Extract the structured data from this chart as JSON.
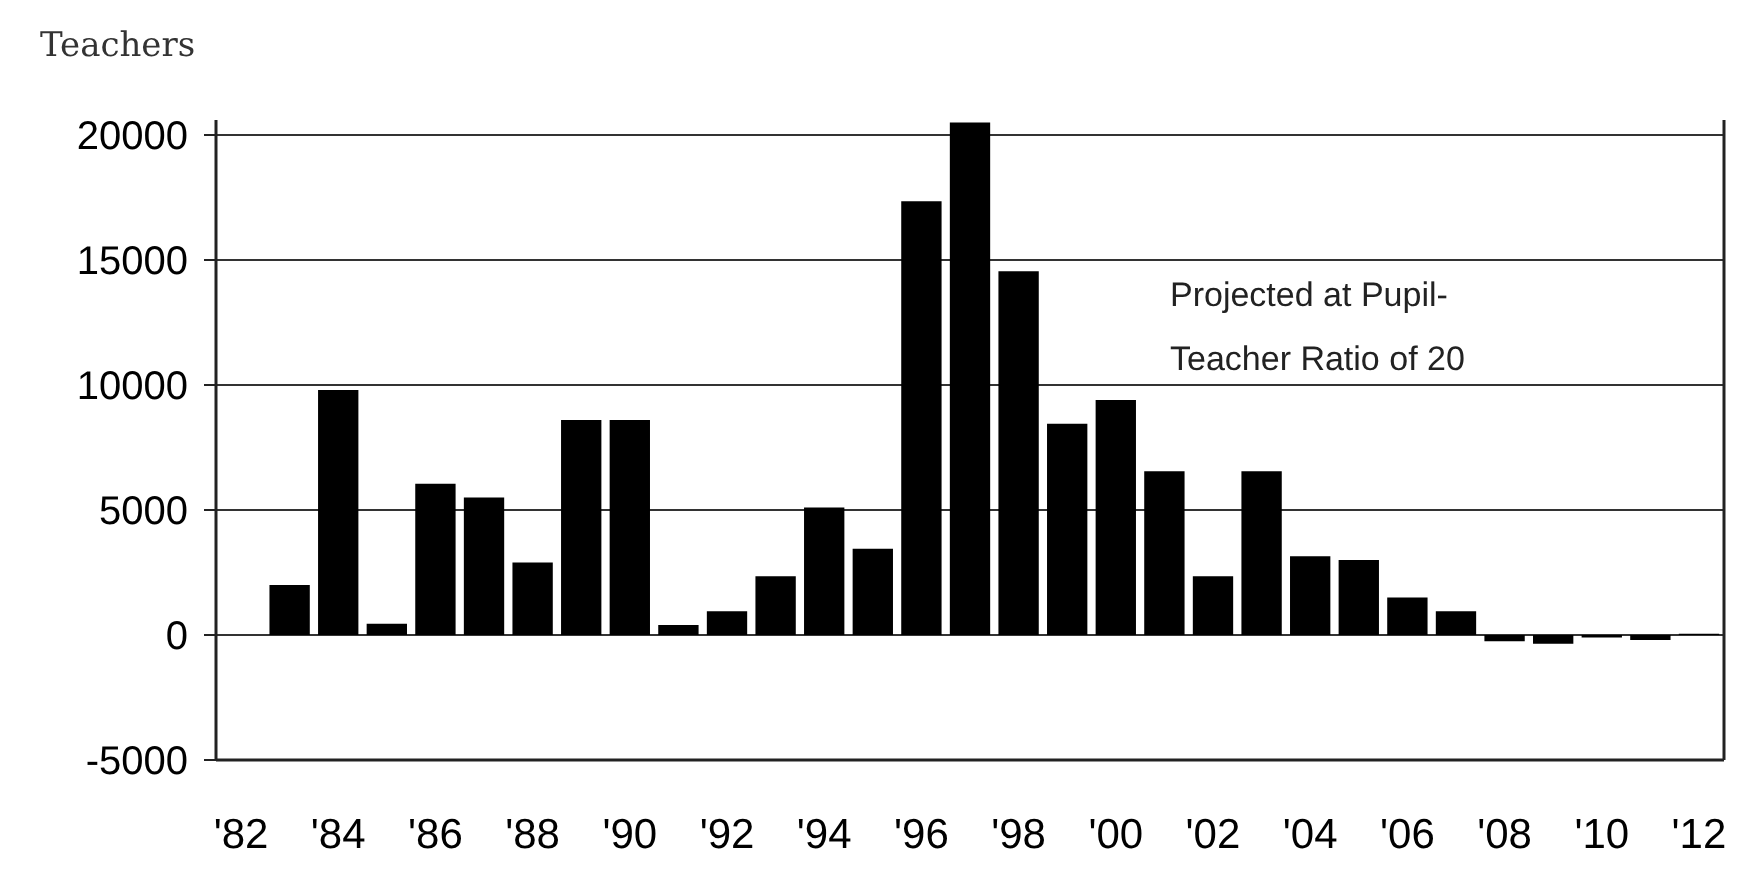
{
  "chart_data": {
    "type": "bar",
    "ylabel": "Teachers",
    "categories": [
      "'82",
      null,
      "'84",
      null,
      "'86",
      null,
      "'88",
      null,
      "'90",
      null,
      "'92",
      null,
      "'94",
      null,
      "'96",
      null,
      "'98",
      null,
      "'00",
      null,
      "'02",
      null,
      "'04",
      null,
      "'06",
      null,
      "'08",
      null,
      "'10",
      null,
      "'12"
    ],
    "values": [
      null,
      2000,
      9800,
      450,
      6050,
      5500,
      2900,
      8600,
      8600,
      400,
      950,
      2350,
      5100,
      3450,
      17350,
      20500,
      14550,
      8450,
      9400,
      6550,
      2350,
      6550,
      3150,
      3000,
      1500,
      950,
      -250,
      -350,
      -100,
      -200,
      50
    ],
    "color": "#000000",
    "ylim": [
      -5000,
      20600
    ],
    "yticks": [
      -5000,
      0,
      5000,
      10000,
      15000,
      20000
    ],
    "grid": "y",
    "annotations": [
      "Projected at Pupil-Teacher Ratio of 20"
    ]
  }
}
